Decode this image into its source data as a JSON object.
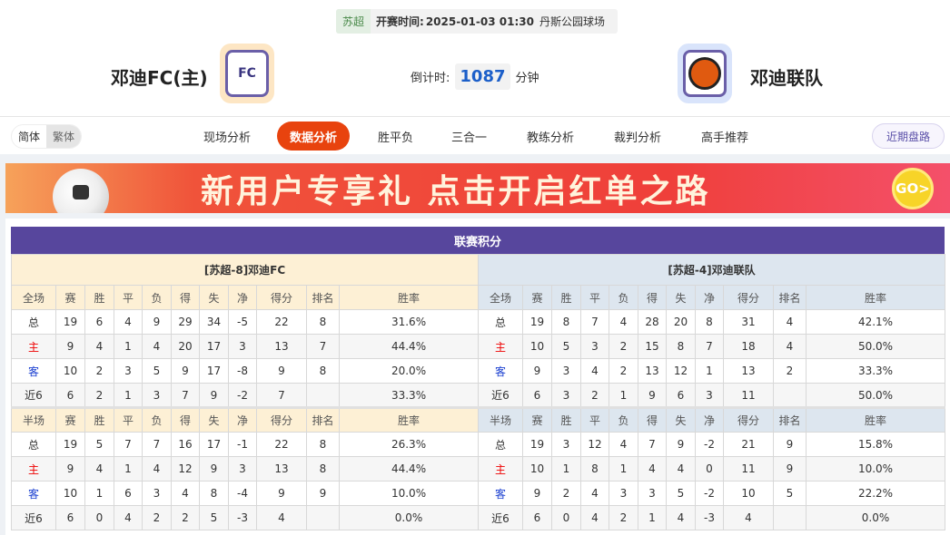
{
  "match": {
    "league": "苏超",
    "time_label": "开赛时间:",
    "time": "2025-01-03 01:30",
    "venue": "丹斯公园球场",
    "home": "邓迪FC(主)",
    "away": "邓迪联队",
    "countdown_label": "倒计时:",
    "countdown": "1087",
    "countdown_unit": "分钟"
  },
  "nav": {
    "simplified": "简体",
    "traditional": "繁体",
    "tabs": [
      "现场分析",
      "数据分析",
      "胜平负",
      "三合一",
      "教练分析",
      "裁判分析",
      "高手推荐"
    ],
    "active": "数据分析",
    "recent": "近期盘路"
  },
  "banner": {
    "text": "新用户专享礼  点击开启红单之路",
    "go": "GO>"
  },
  "standings": {
    "title": "联赛积分",
    "cols": [
      "赛",
      "胜",
      "平",
      "负",
      "得",
      "失",
      "净",
      "得分",
      "排名",
      "胜率"
    ],
    "full_label": "全场",
    "half_label": "半场",
    "teams": [
      {
        "header": "[苏超-8]邓迪FC",
        "full": [
          [
            "总",
            "19",
            "6",
            "4",
            "9",
            "29",
            "34",
            "-5",
            "22",
            "8",
            "31.6%"
          ],
          [
            "主",
            "9",
            "4",
            "1",
            "4",
            "20",
            "17",
            "3",
            "13",
            "7",
            "44.4%"
          ],
          [
            "客",
            "10",
            "2",
            "3",
            "5",
            "9",
            "17",
            "-8",
            "9",
            "8",
            "20.0%"
          ],
          [
            "近6",
            "6",
            "2",
            "1",
            "3",
            "7",
            "9",
            "-2",
            "7",
            "",
            "33.3%"
          ]
        ],
        "half": [
          [
            "总",
            "19",
            "5",
            "7",
            "7",
            "16",
            "17",
            "-1",
            "22",
            "8",
            "26.3%"
          ],
          [
            "主",
            "9",
            "4",
            "1",
            "4",
            "12",
            "9",
            "3",
            "13",
            "8",
            "44.4%"
          ],
          [
            "客",
            "10",
            "1",
            "6",
            "3",
            "4",
            "8",
            "-4",
            "9",
            "9",
            "10.0%"
          ],
          [
            "近6",
            "6",
            "0",
            "4",
            "2",
            "2",
            "5",
            "-3",
            "4",
            "",
            "0.0%"
          ]
        ]
      },
      {
        "header": "[苏超-4]邓迪联队",
        "full": [
          [
            "总",
            "19",
            "8",
            "7",
            "4",
            "28",
            "20",
            "8",
            "31",
            "4",
            "42.1%"
          ],
          [
            "主",
            "10",
            "5",
            "3",
            "2",
            "15",
            "8",
            "7",
            "18",
            "4",
            "50.0%"
          ],
          [
            "客",
            "9",
            "3",
            "4",
            "2",
            "13",
            "12",
            "1",
            "13",
            "2",
            "33.3%"
          ],
          [
            "近6",
            "6",
            "3",
            "2",
            "1",
            "9",
            "6",
            "3",
            "11",
            "",
            "50.0%"
          ]
        ],
        "half": [
          [
            "总",
            "19",
            "3",
            "12",
            "4",
            "7",
            "9",
            "-2",
            "21",
            "9",
            "15.8%"
          ],
          [
            "主",
            "10",
            "1",
            "8",
            "1",
            "4",
            "4",
            "0",
            "11",
            "9",
            "10.0%"
          ],
          [
            "客",
            "9",
            "2",
            "4",
            "3",
            "3",
            "5",
            "-2",
            "10",
            "5",
            "22.2%"
          ],
          [
            "近6",
            "6",
            "0",
            "4",
            "2",
            "1",
            "4",
            "-3",
            "4",
            "",
            "0.0%"
          ]
        ]
      }
    ]
  }
}
